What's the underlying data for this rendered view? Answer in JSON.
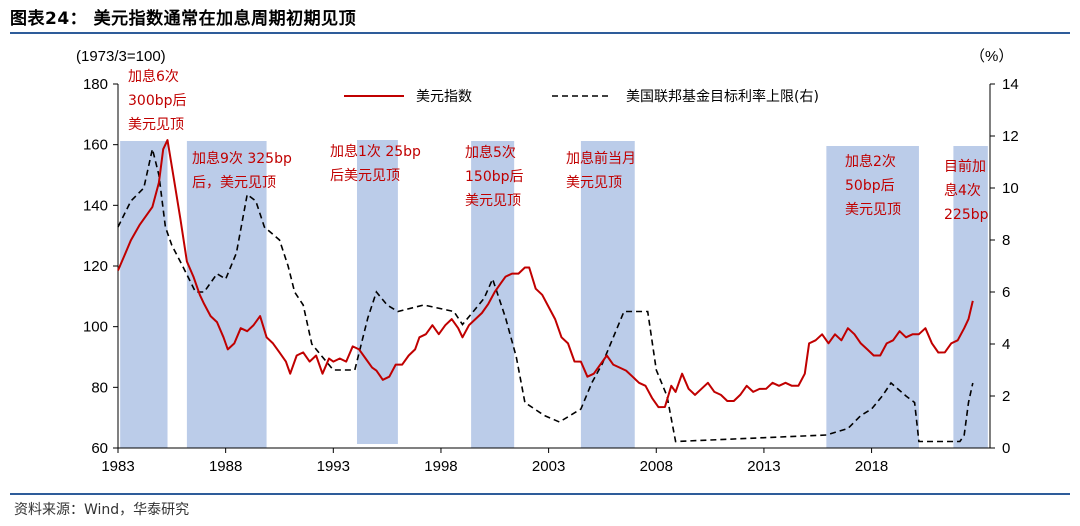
{
  "figure": {
    "title": "图表24：  美元指数通常在加息周期初期见顶",
    "source": "资料来源：Wind，华泰研究"
  },
  "chart_data": {
    "type": "line",
    "title": "美元指数通常在加息周期初期见顶",
    "left_unit": "(1973/3=100)",
    "right_unit": "（%）",
    "x_range": [
      1983.0,
      2023.5
    ],
    "x_ticks": [
      "1983",
      "1988",
      "1993",
      "1998",
      "2003",
      "2008",
      "2013",
      "2018"
    ],
    "ylim_left": [
      60,
      180
    ],
    "yticks_left": [
      "60",
      "80",
      "100",
      "120",
      "140",
      "160",
      "180"
    ],
    "ylim_right": [
      0,
      14
    ],
    "yticks_right": [
      "0",
      "2",
      "4",
      "6",
      "8",
      "10",
      "12",
      "14"
    ],
    "grid": false,
    "legend_position": "top",
    "colors": {
      "usd": "#c00000",
      "fed": "#000000",
      "shade": "#b4c6e7",
      "annotation": "#c00000",
      "rule": "#2e5c9a"
    },
    "series": [
      {
        "name": "美元指数",
        "axis": "left",
        "x": [
          1983.0,
          1983.3,
          1983.6,
          1984.0,
          1984.3,
          1984.6,
          1984.9,
          1985.1,
          1985.3,
          1985.6,
          1985.9,
          1986.2,
          1986.5,
          1986.8,
          1987.0,
          1987.3,
          1987.6,
          1987.9,
          1988.1,
          1988.4,
          1988.7,
          1989.0,
          1989.3,
          1989.6,
          1989.9,
          1990.2,
          1990.5,
          1990.8,
          1991.0,
          1991.3,
          1991.6,
          1991.9,
          1992.2,
          1992.5,
          1992.8,
          1993.0,
          1993.3,
          1993.6,
          1993.9,
          1994.2,
          1994.5,
          1994.8,
          1995.0,
          1995.3,
          1995.6,
          1995.9,
          1996.2,
          1996.5,
          1996.8,
          1997.0,
          1997.3,
          1997.6,
          1997.9,
          1998.2,
          1998.5,
          1998.8,
          1999.0,
          1999.3,
          1999.6,
          1999.9,
          2000.2,
          2000.5,
          2000.8,
          2001.0,
          2001.3,
          2001.6,
          2001.9,
          2002.1,
          2002.4,
          2002.7,
          2003.0,
          2003.3,
          2003.6,
          2003.9,
          2004.2,
          2004.5,
          2004.8,
          2005.1,
          2005.4,
          2005.7,
          2006.0,
          2006.3,
          2006.6,
          2006.9,
          2007.2,
          2007.5,
          2007.8,
          2008.1,
          2008.4,
          2008.7,
          2008.9,
          2009.2,
          2009.5,
          2009.8,
          2010.1,
          2010.4,
          2010.7,
          2011.0,
          2011.3,
          2011.6,
          2011.9,
          2012.2,
          2012.5,
          2012.8,
          2013.1,
          2013.4,
          2013.7,
          2014.0,
          2014.3,
          2014.6,
          2014.9,
          2015.1,
          2015.4,
          2015.7,
          2016.0,
          2016.3,
          2016.6,
          2016.9,
          2017.2,
          2017.5,
          2017.8,
          2018.1,
          2018.4,
          2018.7,
          2019.0,
          2019.3,
          2019.6,
          2019.9,
          2020.2,
          2020.5,
          2020.8,
          2021.1,
          2021.4,
          2021.7,
          2022.0,
          2022.3,
          2022.5,
          2022.7
        ],
        "values": [
          119,
          123,
          129,
          133,
          137,
          139,
          148,
          158,
          162,
          148,
          136,
          121,
          117,
          110,
          108,
          103,
          102,
          96,
          93,
          94,
          100,
          98,
          101,
          103,
          97,
          94,
          92,
          88,
          85,
          90,
          92,
          88,
          91,
          84,
          90,
          88,
          90,
          88,
          94,
          92,
          90,
          86,
          86,
          82,
          84,
          87,
          88,
          90,
          93,
          96,
          98,
          100,
          98,
          100,
          103,
          99,
          97,
          100,
          103,
          104,
          108,
          111,
          115,
          116,
          118,
          117,
          120,
          119,
          113,
          110,
          107,
          102,
          97,
          94,
          89,
          88,
          84,
          84,
          88,
          90,
          88,
          86,
          86,
          83,
          82,
          80,
          77,
          73,
          74,
          80,
          79,
          84,
          80,
          77,
          80,
          81,
          79,
          77,
          76,
          75,
          78,
          80,
          79,
          79,
          80,
          81,
          81,
          81,
          81,
          80,
          85,
          94,
          96,
          97,
          95,
          97,
          96,
          99,
          98,
          94,
          93,
          90,
          91,
          94,
          96,
          98,
          97,
          97,
          98,
          99,
          95,
          91,
          92,
          94,
          96,
          99,
          103,
          108
        ]
      },
      {
        "name": "美国联邦基金目标利率上限(右)",
        "axis": "right",
        "dashed": true,
        "x": [
          1983.0,
          1983.6,
          1984.2,
          1984.6,
          1984.9,
          1985.2,
          1985.5,
          1986.0,
          1986.6,
          1987.0,
          1987.6,
          1988.0,
          1988.5,
          1989.0,
          1989.4,
          1989.8,
          1990.5,
          1990.9,
          1991.2,
          1991.6,
          1992.0,
          1992.5,
          1993.0,
          1994.0,
          1994.3,
          1994.6,
          1995.0,
          1995.5,
          1996.0,
          1997.2,
          1998.6,
          1999.0,
          1999.5,
          2000.0,
          2000.4,
          2001.0,
          2001.5,
          2001.9,
          2002.8,
          2003.5,
          2004.5,
          2005.0,
          2005.5,
          2006.0,
          2006.5,
          2007.6,
          2008.0,
          2008.5,
          2008.9,
          2015.9,
          2016.9,
          2017.5,
          2018.0,
          2018.5,
          2018.9,
          2019.6,
          2020.0,
          2020.2,
          2022.1,
          2022.3,
          2022.5,
          2022.7
        ],
        "values": [
          8.5,
          9.5,
          10.0,
          11.5,
          10.5,
          8.5,
          7.8,
          7.0,
          6.0,
          6.0,
          6.7,
          6.5,
          7.5,
          9.75,
          9.5,
          8.5,
          8.0,
          7.0,
          6.0,
          5.5,
          4.0,
          3.5,
          3.0,
          3.0,
          4.0,
          5.0,
          6.0,
          5.5,
          5.25,
          5.5,
          5.25,
          4.75,
          5.25,
          5.75,
          6.5,
          5.0,
          3.5,
          1.75,
          1.25,
          1.0,
          1.5,
          2.5,
          3.25,
          4.25,
          5.25,
          5.25,
          3.0,
          2.0,
          0.25,
          0.5,
          0.75,
          1.25,
          1.5,
          2.0,
          2.5,
          2.0,
          1.75,
          0.25,
          0.25,
          0.5,
          1.75,
          2.5
        ]
      }
    ],
    "shaded_periods": [
      [
        1983.1,
        1985.3
      ],
      [
        1986.2,
        1989.9
      ],
      [
        1994.1,
        1996.0
      ],
      [
        1999.4,
        2001.4
      ],
      [
        2004.5,
        2007.0
      ],
      [
        2015.9,
        2020.2
      ],
      [
        2021.8,
        2023.4
      ]
    ],
    "annotations": [
      {
        "lines": [
          "加息6次",
          "300bp后",
          "美元见顶"
        ]
      },
      {
        "lines": [
          "加息9次 325bp",
          "后，美元见顶"
        ]
      },
      {
        "lines": [
          "加息1次 25bp",
          "后美元见顶"
        ]
      },
      {
        "lines": [
          "加息5次",
          "150bp后",
          "美元见顶"
        ]
      },
      {
        "lines": [
          "加息前当月",
          "美元见顶"
        ]
      },
      {
        "lines": [
          "加息2次",
          "50bp后",
          "美元见顶"
        ]
      },
      {
        "lines": [
          "目前加",
          "息4次",
          "225bp"
        ]
      }
    ]
  }
}
